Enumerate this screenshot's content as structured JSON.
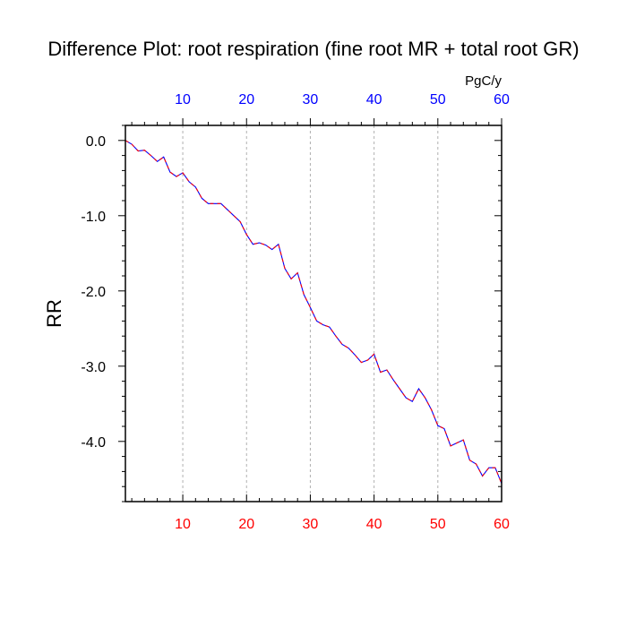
{
  "chart_data": {
    "type": "line",
    "title": "Difference Plot: root respiration (fine root MR + total root GR)",
    "ylabel": "RR",
    "units": "PgC/y",
    "xlim": [
      1,
      60
    ],
    "ylim": [
      -4.8,
      0.2
    ],
    "xticks": [
      10,
      20,
      30,
      40,
      50,
      60
    ],
    "yticks": [
      0.0,
      -1.0,
      -2.0,
      -3.0,
      -4.0
    ],
    "ytick_labels": [
      "0.0",
      "-1.0",
      "-2.0",
      "-3.0",
      "-4.0"
    ],
    "grid": "vertical-dashed",
    "bottom_tick_color": "#ff0000",
    "top_tick_color": "#0000ff",
    "line_colors": [
      "#0000ff",
      "#ff0000"
    ],
    "series": [
      {
        "x": [
          1,
          2,
          3,
          4,
          5,
          6,
          7,
          8,
          9,
          10,
          11,
          12,
          13,
          14,
          15,
          16,
          17,
          18,
          19,
          20,
          21,
          22,
          23,
          24,
          25,
          26,
          27,
          28,
          29,
          30,
          31,
          32,
          33,
          34,
          35,
          36,
          37,
          38,
          39,
          40,
          41,
          42,
          43,
          44,
          45,
          46,
          47,
          48,
          49,
          50,
          51,
          52,
          53,
          54,
          55,
          56,
          57,
          58,
          59,
          60
        ],
        "values": [
          0.0,
          -0.05,
          -0.14,
          -0.13,
          -0.2,
          -0.28,
          -0.22,
          -0.42,
          -0.48,
          -0.43,
          -0.55,
          -0.62,
          -0.77,
          -0.84,
          -0.84,
          -0.84,
          -0.92,
          -1.0,
          -1.08,
          -1.25,
          -1.38,
          -1.36,
          -1.39,
          -1.45,
          -1.38,
          -1.7,
          -1.84,
          -1.76,
          -2.05,
          -2.22,
          -2.4,
          -2.45,
          -2.48,
          -2.6,
          -2.71,
          -2.76,
          -2.85,
          -2.95,
          -2.92,
          -2.84,
          -3.08,
          -3.05,
          -3.18,
          -3.3,
          -3.42,
          -3.47,
          -3.3,
          -3.42,
          -3.58,
          -3.79,
          -3.83,
          -4.06,
          -4.02,
          -3.98,
          -4.25,
          -4.3,
          -4.46,
          -4.35,
          -4.35,
          -4.56
        ]
      }
    ]
  }
}
